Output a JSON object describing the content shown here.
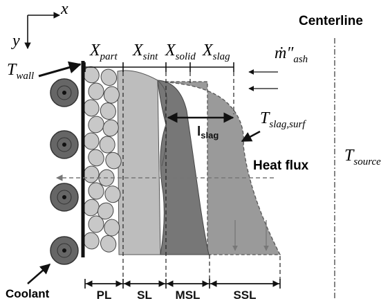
{
  "axes": {
    "x": "x",
    "y": "y"
  },
  "centerline": "Centerline",
  "t_wall": {
    "main": "T",
    "sub": "wall"
  },
  "widths": [
    {
      "main": "X",
      "sub": "part"
    },
    {
      "main": "X",
      "sub": "sint"
    },
    {
      "main": "X",
      "sub": "solid"
    },
    {
      "main": "X",
      "sub": "slag"
    }
  ],
  "mass_flux": {
    "main": "ṁ″",
    "sub": "ash"
  },
  "thickness": {
    "main": "l",
    "sub": "slag"
  },
  "t_slag_surf": {
    "main": "T",
    "sub": "slag,surf"
  },
  "heat_flux": "Heat flux",
  "t_source": {
    "main": "T",
    "sub": "source"
  },
  "coolant": "Coolant",
  "layers": [
    "PL",
    "SL",
    "MSL",
    "SSL"
  ]
}
